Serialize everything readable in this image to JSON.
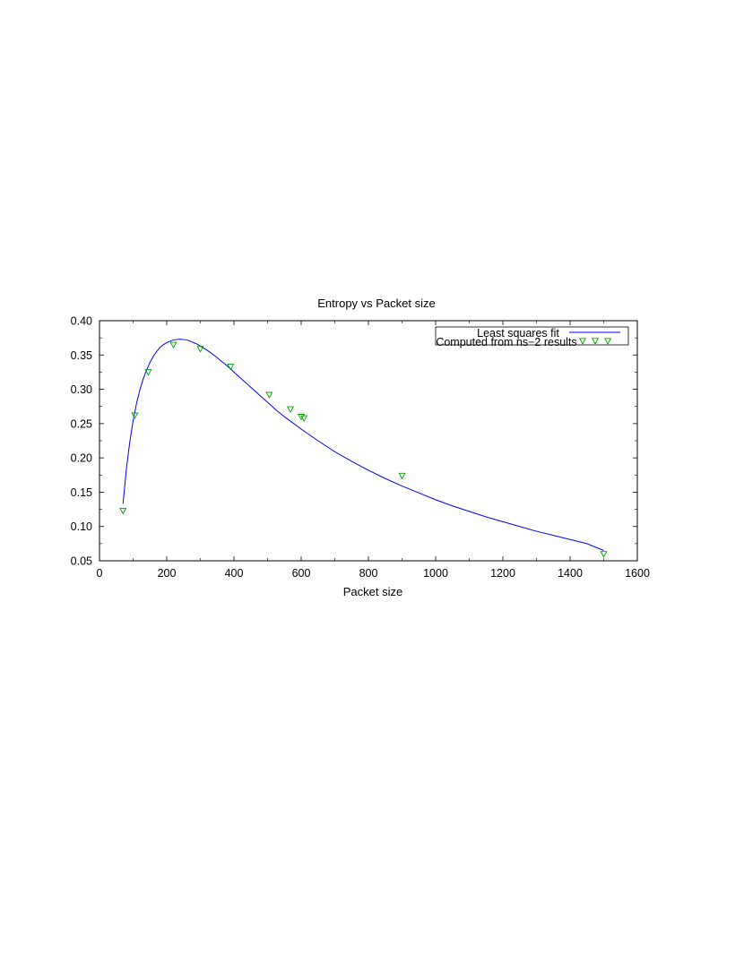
{
  "chart_data": {
    "type": "scatter",
    "title": "Entropy vs Packet size",
    "xlabel": "Packet size",
    "ylabel": "",
    "xlim": [
      0,
      1600
    ],
    "ylim": [
      0.05,
      0.4
    ],
    "x_ticks": [
      0,
      200,
      400,
      600,
      800,
      1000,
      1200,
      1400,
      1600
    ],
    "x_tick_labels": [
      "0",
      "200",
      "400",
      "600",
      "800",
      "1000",
      "1200",
      "1400",
      "1600"
    ],
    "y_ticks": [
      0.05,
      0.1,
      0.15,
      0.2,
      0.25,
      0.3,
      0.35,
      0.4
    ],
    "y_tick_labels": [
      "0.05",
      "0.10",
      "0.15",
      "0.20",
      "0.25",
      "0.30",
      "0.35",
      "0.40"
    ],
    "grid": false,
    "legend_position": "top-right",
    "series": [
      {
        "name": "Least squares fit",
        "kind": "line",
        "color": "#0000ff",
        "x": [
          70,
          80,
          90,
          100,
          110,
          120,
          130,
          140,
          150,
          160,
          170,
          180,
          190,
          200,
          210,
          220,
          230,
          240,
          250,
          260,
          270,
          280,
          290,
          300,
          320,
          340,
          360,
          380,
          400,
          425,
          450,
          475,
          500,
          525,
          550,
          575,
          600,
          650,
          700,
          750,
          800,
          850,
          900,
          950,
          1000,
          1050,
          1100,
          1150,
          1200,
          1250,
          1300,
          1350,
          1400,
          1450,
          1500
        ],
        "y": [
          0.133,
          0.184,
          0.223,
          0.254,
          0.279,
          0.299,
          0.315,
          0.328,
          0.339,
          0.348,
          0.355,
          0.361,
          0.365,
          0.368,
          0.37,
          0.372,
          0.3725,
          0.373,
          0.3725,
          0.372,
          0.37,
          0.368,
          0.366,
          0.363,
          0.357,
          0.35,
          0.342,
          0.334,
          0.325,
          0.314,
          0.303,
          0.292,
          0.281,
          0.27,
          0.26,
          0.251,
          0.242,
          0.225,
          0.209,
          0.195,
          0.182,
          0.17,
          0.159,
          0.149,
          0.139,
          0.13,
          0.122,
          0.114,
          0.107,
          0.1,
          0.093,
          0.087,
          0.081,
          0.075,
          0.065
        ]
      },
      {
        "name": "Computed from ns−2 results",
        "kind": "scatter",
        "marker": "triangle-down",
        "color": "#00a000",
        "x": [
          70,
          105,
          145,
          220,
          300,
          390,
          505,
          568,
          600,
          608,
          900,
          1500
        ],
        "y": [
          0.123,
          0.262,
          0.325,
          0.365,
          0.359,
          0.333,
          0.292,
          0.271,
          0.26,
          0.258,
          0.174,
          0.06
        ]
      }
    ]
  }
}
